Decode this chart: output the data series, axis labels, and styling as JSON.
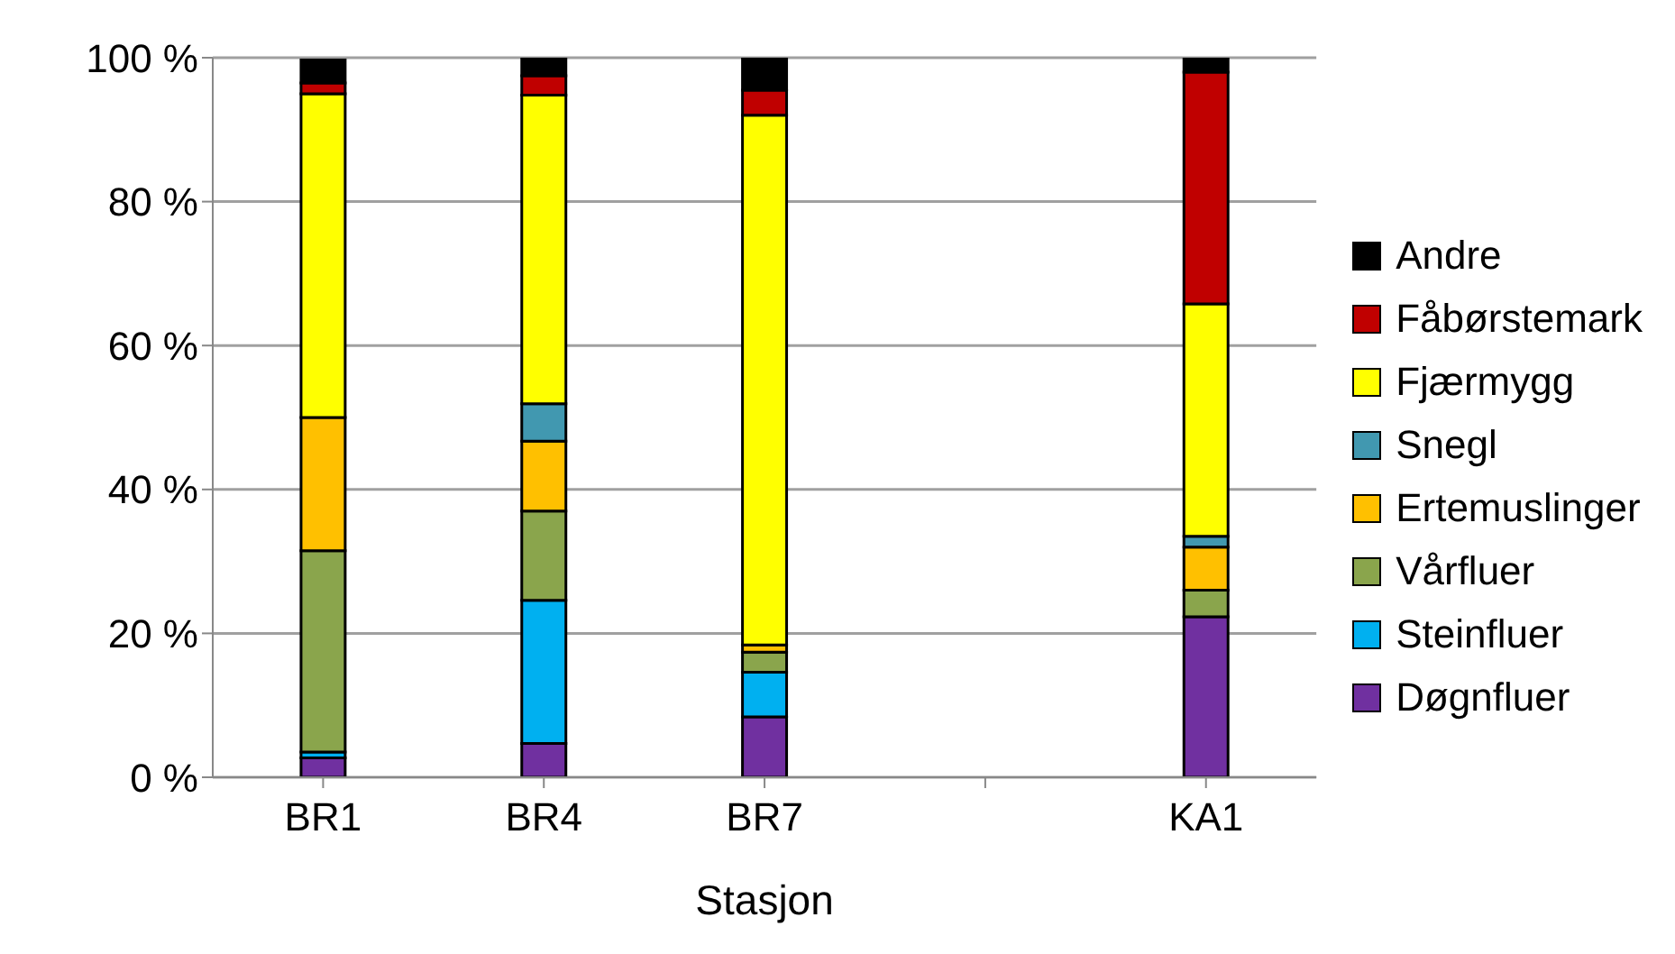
{
  "chart_data": {
    "type": "bar",
    "stacked": true,
    "xlabel": "Stasjon",
    "categories": [
      "BR1",
      "BR4",
      "BR7",
      null,
      "KA1"
    ],
    "series": [
      {
        "name": "Døgnfluer",
        "color": "#7030a0",
        "values": [
          2.7,
          4.7,
          8.4,
          null,
          22.3
        ]
      },
      {
        "name": "Steinfluer",
        "color": "#00b0f0",
        "values": [
          0.8,
          19.9,
          6.2,
          null,
          0
        ]
      },
      {
        "name": "Vårfluer",
        "color": "#8aa54c",
        "values": [
          28,
          12.4,
          2.8,
          null,
          3.7
        ]
      },
      {
        "name": "Ertemuslinger",
        "color": "#ffc000",
        "values": [
          18.5,
          9.7,
          1,
          null,
          6
        ]
      },
      {
        "name": "Snegl",
        "color": "#4198b0",
        "values": [
          0,
          5.2,
          0,
          null,
          1.5
        ]
      },
      {
        "name": "Fjærmygg",
        "color": "#ffff00",
        "values": [
          45,
          42.9,
          73.6,
          null,
          32.3
        ]
      },
      {
        "name": "Fåbørstemark",
        "color": "#c00000",
        "values": [
          1.5,
          2.7,
          3.5,
          null,
          32.2
        ]
      },
      {
        "name": "Andre",
        "color": "#000000",
        "values": [
          3.2,
          2.5,
          4.5,
          null,
          2
        ]
      }
    ],
    "ylim": [
      0,
      100
    ],
    "yticks": [
      {
        "value": 0,
        "label": "0 %"
      },
      {
        "value": 20,
        "label": "20 %"
      },
      {
        "value": 40,
        "label": "40 %"
      },
      {
        "value": 60,
        "label": "60 %"
      },
      {
        "value": 80,
        "label": "80 %"
      },
      {
        "value": 100,
        "label": "100 %"
      }
    ],
    "grid": "y",
    "legend": "right"
  }
}
